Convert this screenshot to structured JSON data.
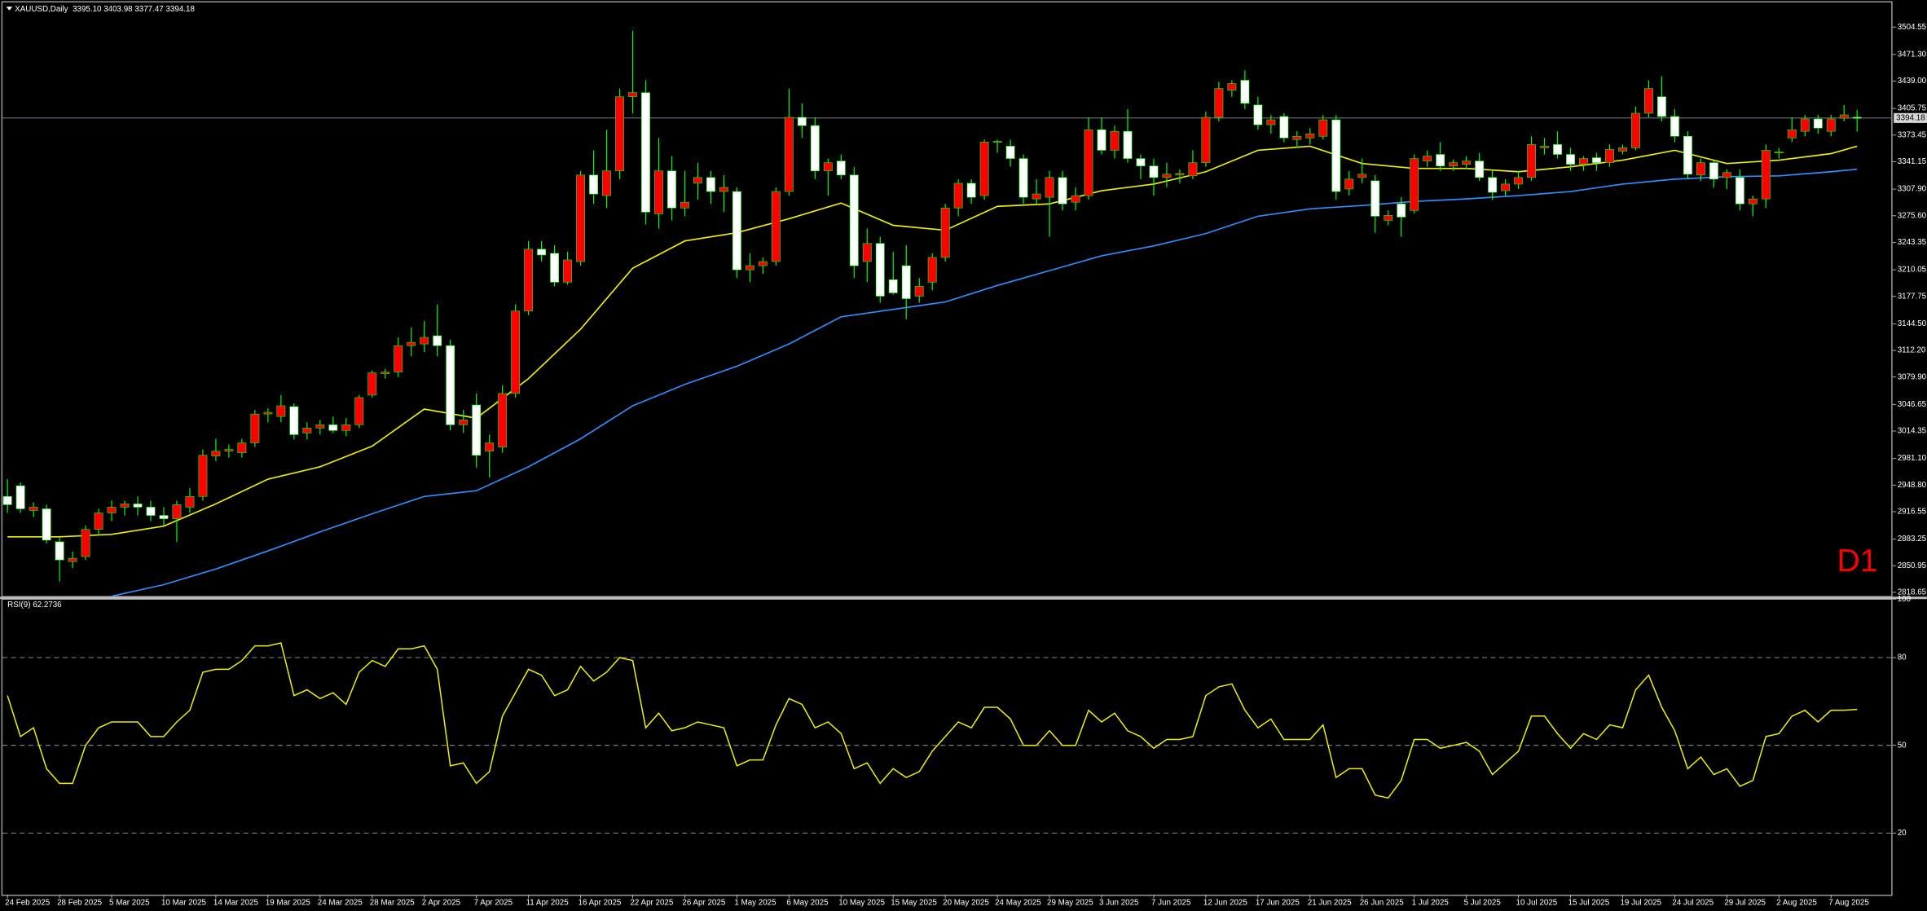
{
  "chart_data": [
    {
      "type": "candlestick",
      "title": "XAUUSD,Daily",
      "subtitle": "3395.10 3403.98 3377.47 3394.18",
      "annotation": "D1",
      "annotation_color": "#ff0000",
      "up_color": "#ff0000",
      "down_color": "#ffffff",
      "wick_color": "#00ff00",
      "price_line_color": "#6a7480",
      "ylim": [
        2814.2,
        3532.9
      ],
      "yticks": [
        3504.55,
        {
          "value": 3471.3,
          "label": "3471.30"
        },
        {
          "value": 3439,
          "label": "3439.00"
        },
        3405.75,
        3373.45,
        3341.15,
        {
          "value": 3307.9,
          "label": "3307.90"
        },
        {
          "value": 3275.6,
          "label": "3275.60"
        },
        3243.35,
        3210.05,
        3177.75,
        {
          "value": 3144.5,
          "label": "3144.50"
        },
        {
          "value": 3112.2,
          "label": "3112.20"
        },
        {
          "value": 3079.9,
          "label": "3079.90"
        },
        3046.65,
        3014.35,
        {
          "value": 2981.1,
          "label": "2981.10"
        },
        {
          "value": 2948.8,
          "label": "2948.80"
        },
        2916.55,
        2883.25,
        2850.95,
        2818.65
      ],
      "categories": [
        "24 Feb 2025",
        null,
        null,
        null,
        "28 Feb 2025",
        null,
        null,
        null,
        "5 Mar 2025",
        null,
        null,
        null,
        "10 Mar 2025",
        null,
        null,
        null,
        "14 Mar 2025",
        null,
        null,
        null,
        "19 Mar 2025",
        null,
        null,
        null,
        "24 Mar 2025",
        null,
        null,
        null,
        "28 Mar 2025",
        null,
        null,
        null,
        "2 Apr 2025",
        null,
        null,
        null,
        "7 Apr 2025",
        null,
        null,
        null,
        "11 Apr 2025",
        null,
        null,
        null,
        "16 Apr 2025",
        null,
        null,
        null,
        "22 Apr 2025",
        null,
        null,
        null,
        "26 Apr 2025",
        null,
        null,
        null,
        "1 May 2025",
        null,
        null,
        null,
        "6 May 2025",
        null,
        null,
        null,
        "10 May 2025",
        null,
        null,
        null,
        "15 May 2025",
        null,
        null,
        null,
        "20 May 2025",
        null,
        null,
        null,
        "24 May 2025",
        null,
        null,
        null,
        "29 May 2025",
        null,
        null,
        null,
        "3 Jun 2025",
        null,
        null,
        null,
        "7 Jun 2025",
        null,
        null,
        null,
        "12 Jun 2025",
        null,
        null,
        null,
        "17 Jun 2025",
        null,
        null,
        null,
        "21 Jun 2025",
        null,
        null,
        null,
        "26 Jun 2025",
        null,
        null,
        null,
        "1 Jul 2025",
        null,
        null,
        null,
        "5 Jul 2025",
        null,
        null,
        null,
        "10 Jul 2025",
        null,
        null,
        null,
        "15 Jul 2025",
        null,
        null,
        null,
        "19 Jul 2025",
        null,
        null,
        null,
        "24 Jul 2025",
        null,
        null,
        null,
        "29 Jul 2025",
        null,
        null,
        null,
        "2 Aug 2025",
        null,
        null,
        null,
        "7 Aug 2025",
        null,
        null
      ],
      "open": [
        2935,
        2948,
        2918,
        2920,
        2880,
        2856,
        2862,
        2895,
        2915,
        2922,
        2926,
        2922,
        2912,
        2908,
        2922,
        2935,
        2984,
        2990,
        2988,
        3000,
        3035,
        3032,
        3044,
        3012,
        3018,
        3022,
        3015,
        3022,
        3058,
        3084,
        3086,
        3118,
        3120,
        3130,
        3118,
        3022,
        3046,
        2990,
        2995,
        3060,
        3160,
        3235,
        3230,
        3195,
        3220,
        3325,
        3300,
        3330,
        3420,
        3425,
        3278,
        3330,
        3285,
        3315,
        3322,
        3305,
        3305,
        3210,
        3215,
        3220,
        3305,
        3395,
        3385,
        3330,
        3342,
        3325,
        3220,
        3242,
        3198,
        3215,
        3178,
        3195,
        3225,
        3285,
        3315,
        3300,
        3365,
        3360,
        3345,
        3296,
        3298,
        3322,
        3292,
        3300,
        3380,
        3355,
        3378,
        3345,
        3336,
        3322,
        3325,
        3324,
        3340,
        3395,
        3428,
        3440,
        3410,
        3386,
        3396,
        3368,
        3370,
        3372,
        3392,
        3308,
        3322,
        3318,
        3270,
        3290,
        3282,
        3342,
        3350,
        3336,
        3338,
        3342,
        3322,
        3306,
        3314,
        3322,
        3358,
        3362,
        3350,
        3338,
        3346,
        3340,
        3354,
        3358,
        3400,
        3420,
        3396,
        3372,
        3325,
        3340,
        3322,
        3322,
        3290,
        3296,
        3352,
        3370,
        3378,
        3393,
        3378,
        3394,
        3395.1
      ],
      "high": [
        2956,
        2952,
        2928,
        2925,
        2885,
        2868,
        2900,
        2920,
        2930,
        2930,
        2935,
        2930,
        2922,
        2930,
        2945,
        2992,
        3005,
        2998,
        3005,
        3040,
        3042,
        3058,
        3048,
        3025,
        3028,
        3032,
        3030,
        3058,
        3088,
        3090,
        3128,
        3140,
        3148,
        3168,
        3125,
        3040,
        3060,
        3010,
        3070,
        3168,
        3245,
        3245,
        3240,
        3232,
        3330,
        3355,
        3380,
        3430,
        3500,
        3440,
        3370,
        3348,
        3330,
        3340,
        3330,
        3325,
        3310,
        3230,
        3225,
        3310,
        3430,
        3412,
        3395,
        3345,
        3350,
        3335,
        3260,
        3250,
        3232,
        3240,
        3200,
        3230,
        3290,
        3320,
        3320,
        3368,
        3368,
        3368,
        3350,
        3320,
        3330,
        3330,
        3310,
        3395,
        3395,
        3385,
        3405,
        3350,
        3345,
        3340,
        3332,
        3355,
        3402,
        3438,
        3440,
        3452,
        3420,
        3398,
        3400,
        3378,
        3382,
        3398,
        3398,
        3330,
        3345,
        3325,
        3282,
        3298,
        3350,
        3355,
        3365,
        3344,
        3348,
        3352,
        3330,
        3320,
        3330,
        3372,
        3370,
        3378,
        3358,
        3348,
        3352,
        3362,
        3362,
        3408,
        3440,
        3445,
        3405,
        3378,
        3345,
        3342,
        3332,
        3332,
        3300,
        3362,
        3358,
        3395,
        3398,
        3398,
        3398,
        3410,
        3403.98
      ],
      "low": [
        2915,
        2915,
        2910,
        2878,
        2832,
        2848,
        2858,
        2888,
        2905,
        2912,
        2912,
        2905,
        2900,
        2880,
        2915,
        2930,
        2978,
        2982,
        2982,
        2995,
        3025,
        3025,
        3004,
        3004,
        3010,
        3012,
        3008,
        3018,
        3055,
        3078,
        3080,
        3105,
        3110,
        3105,
        3015,
        3012,
        2970,
        2958,
        2988,
        3055,
        3155,
        3220,
        3190,
        3192,
        3215,
        3290,
        3285,
        3320,
        3400,
        3265,
        3260,
        3270,
        3275,
        3295,
        3290,
        3280,
        3200,
        3195,
        3205,
        3215,
        3300,
        3370,
        3320,
        3300,
        3320,
        3200,
        3195,
        3170,
        3180,
        3150,
        3170,
        3185,
        3220,
        3275,
        3290,
        3295,
        3352,
        3335,
        3290,
        3290,
        3250,
        3282,
        3282,
        3295,
        3350,
        3345,
        3340,
        3320,
        3300,
        3310,
        3315,
        3320,
        3335,
        3390,
        3420,
        3405,
        3380,
        3375,
        3365,
        3358,
        3362,
        3368,
        3295,
        3300,
        3315,
        3255,
        3264,
        3250,
        3278,
        3335,
        3330,
        3330,
        3332,
        3318,
        3295,
        3300,
        3308,
        3318,
        3350,
        3345,
        3330,
        3330,
        3330,
        3335,
        3350,
        3355,
        3395,
        3390,
        3365,
        3320,
        3318,
        3310,
        3308,
        3282,
        3275,
        3285,
        3345,
        3365,
        3372,
        3375,
        3372,
        3390,
        3377.47
      ],
      "close": [
        2925,
        2920,
        2922,
        2882,
        2858,
        2860,
        2895,
        2915,
        2922,
        2926,
        2922,
        2912,
        2908,
        2925,
        2935,
        2985,
        2990,
        2992,
        3000,
        3035,
        3037,
        3045,
        3010,
        3018,
        3022,
        3015,
        3022,
        3055,
        3085,
        3086,
        3118,
        3122,
        3128,
        3118,
        3022,
        3028,
        2985,
        3000,
        3060,
        3160,
        3235,
        3228,
        3195,
        3222,
        3325,
        3302,
        3330,
        3420,
        3425,
        3280,
        3330,
        3285,
        3292,
        3322,
        3305,
        3310,
        3210,
        3215,
        3220,
        3305,
        3395,
        3385,
        3330,
        3340,
        3325,
        3215,
        3242,
        3178,
        3182,
        3175,
        3190,
        3225,
        3285,
        3315,
        3298,
        3365,
        3366,
        3345,
        3298,
        3302,
        3322,
        3290,
        3300,
        3380,
        3355,
        3378,
        3345,
        3336,
        3322,
        3326,
        3327,
        3340,
        3395,
        3430,
        3436,
        3412,
        3386,
        3392,
        3370,
        3372,
        3375,
        3392,
        3305,
        3320,
        3326,
        3275,
        3276,
        3274,
        3345,
        3348,
        3336,
        3340,
        3342,
        3322,
        3304,
        3314,
        3322,
        3362,
        3360,
        3350,
        3338,
        3345,
        3340,
        3356,
        3358,
        3400,
        3430,
        3396,
        3372,
        3326,
        3340,
        3320,
        3328,
        3290,
        3296,
        3355,
        3353,
        3380,
        3393,
        3382,
        3393,
        3398,
        3394.18
      ],
      "series": [
        {
          "color": "#f0f000",
          "x": [
            0,
            4,
            8,
            12,
            16,
            20,
            24,
            28,
            32,
            36,
            40,
            44,
            48,
            52,
            56,
            60,
            64,
            68,
            72,
            76,
            80,
            84,
            88,
            92,
            96,
            100,
            104,
            108,
            112,
            116,
            120,
            124,
            128,
            132,
            136,
            140,
            142
          ],
          "values": [
            2886,
            2886,
            2889,
            2899,
            2926,
            2956,
            2971,
            2996,
            3041,
            3030,
            3078,
            3138,
            3212,
            3245,
            3255,
            3272,
            3291,
            3264,
            3258,
            3287,
            3290,
            3306,
            3314,
            3329,
            3355,
            3360,
            3339,
            3333,
            3333,
            3329,
            3335,
            3343,
            3355,
            3339,
            3343,
            3351,
            3360
          ]
        },
        {
          "color": "#2f8fff",
          "x": [
            8,
            12,
            16,
            20,
            24,
            28,
            32,
            36,
            40,
            44,
            48,
            52,
            56,
            60,
            64,
            68,
            72,
            76,
            80,
            84,
            88,
            92,
            96,
            100,
            104,
            108,
            112,
            116,
            120,
            124,
            128,
            132,
            136,
            140,
            142
          ],
          "values": [
            2814,
            2828,
            2847,
            2869,
            2892,
            2914,
            2935,
            2942,
            2971,
            3005,
            3045,
            3071,
            3093,
            3120,
            3153,
            3162,
            3171,
            3191,
            3209,
            3227,
            3239,
            3254,
            3275,
            3284,
            3288,
            3293,
            3296,
            3300,
            3305,
            3314,
            3320,
            3323,
            3324,
            3329,
            3332
          ]
        }
      ]
    },
    {
      "type": "line",
      "title": "RSI(9)",
      "ylim": [
        0,
        100
      ],
      "yticks": [
        100,
        80,
        50,
        20
      ],
      "level_color": "#8c8c8c",
      "series": [
        {
          "color": "#f0f000",
          "values": [
            67,
            53,
            56,
            42,
            37,
            37,
            50,
            56,
            58,
            58,
            58,
            53,
            53,
            58,
            62,
            75,
            76,
            76,
            79,
            84,
            84,
            85,
            67,
            69,
            66,
            68,
            64,
            75,
            79,
            77,
            83,
            83,
            84,
            76,
            43,
            44,
            37,
            41,
            60,
            68,
            76,
            74,
            67,
            69,
            77,
            72,
            75,
            80,
            79,
            56,
            61,
            55,
            56,
            58,
            57,
            56,
            43,
            45,
            45,
            57,
            66,
            64,
            56,
            58,
            54,
            42,
            44,
            37,
            42,
            39,
            41,
            48,
            53,
            58,
            56,
            63,
            63,
            59,
            50,
            50,
            55,
            50,
            50,
            62,
            58,
            61,
            55,
            53,
            49,
            52,
            52,
            53,
            67,
            70,
            71,
            62,
            56,
            59,
            52,
            52,
            52,
            57,
            39,
            42,
            42,
            33,
            32,
            38,
            52,
            52,
            49,
            50,
            51,
            48,
            40,
            44,
            48,
            60,
            60,
            54,
            49,
            54,
            52,
            57,
            56,
            69,
            74,
            63,
            55,
            42,
            46,
            40,
            42,
            36,
            38,
            53,
            54,
            60,
            62,
            58,
            62,
            62,
            62.2736
          ]
        }
      ]
    }
  ]
}
